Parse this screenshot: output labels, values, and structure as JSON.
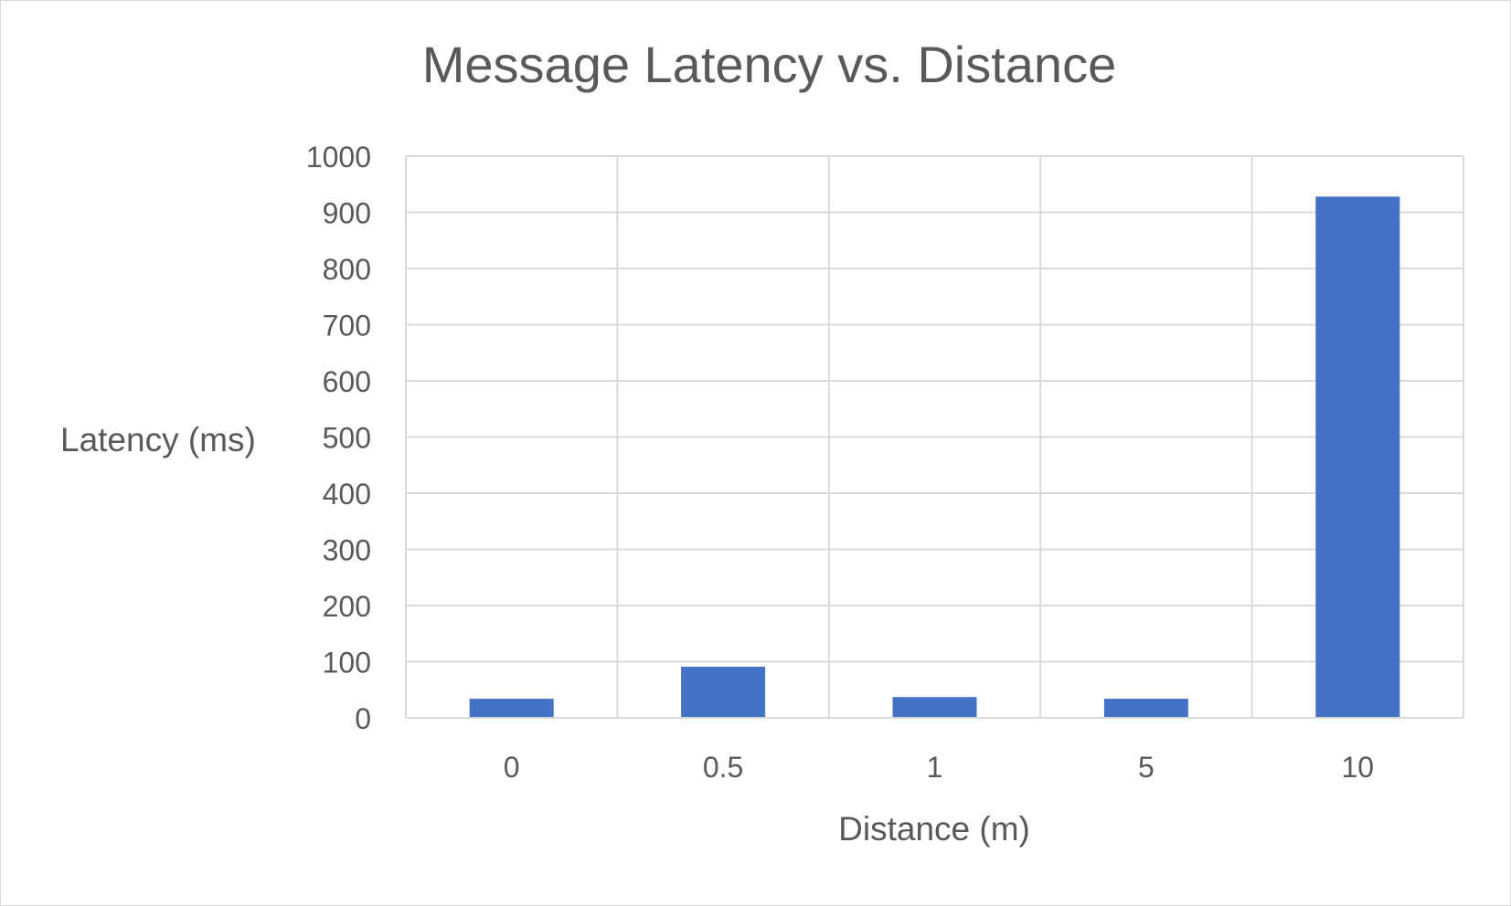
{
  "chart_data": {
    "type": "bar",
    "title": "Message Latency vs. Distance",
    "xlabel": "Distance (m)",
    "ylabel": "Latency (ms)",
    "categories": [
      "0",
      "0.5",
      "1",
      "5",
      "10"
    ],
    "values": [
      34,
      91,
      37,
      34,
      928
    ],
    "ylim": [
      0,
      1000
    ],
    "yticks": [
      "0",
      "100",
      "200",
      "300",
      "400",
      "500",
      "600",
      "700",
      "800",
      "900",
      "1000"
    ],
    "grid": true,
    "legend": "none",
    "colors": {
      "bar": "#4472c4",
      "grid": "#d9d9d9",
      "text": "#595959"
    }
  }
}
